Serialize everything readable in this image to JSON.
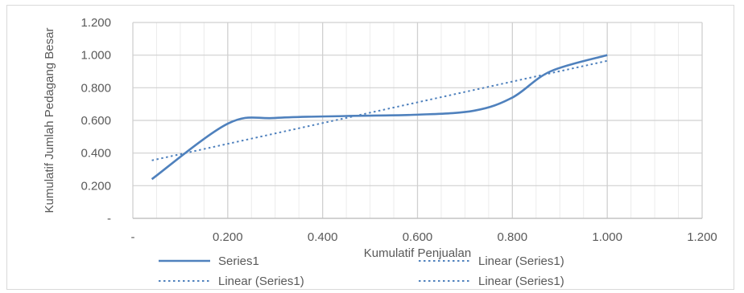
{
  "chart_data": {
    "type": "line",
    "title": "",
    "xlabel": "Kumulatif Penjualan",
    "ylabel": "Kumulatif Jumlah Pedagang Besar",
    "xlim": [
      0,
      1.2
    ],
    "ylim": [
      0,
      1.2
    ],
    "x_ticks": [
      "-",
      "0.200",
      "0.400",
      "0.600",
      "0.800",
      "1.000",
      "1.200"
    ],
    "y_ticks": [
      "-",
      "0.200",
      "0.400",
      "0.600",
      "0.800",
      "1.000",
      "1.200"
    ],
    "grid": true,
    "legend_position": "bottom",
    "series": [
      {
        "name": "Series1",
        "style": "solid",
        "color": "#4f81bd",
        "points": [
          [
            0.04,
            0.24
          ],
          [
            0.2,
            0.58
          ],
          [
            0.3,
            0.615
          ],
          [
            0.45,
            0.627
          ],
          [
            0.6,
            0.635
          ],
          [
            0.72,
            0.66
          ],
          [
            0.8,
            0.74
          ],
          [
            0.88,
            0.9
          ],
          [
            1.0,
            1.0
          ]
        ]
      },
      {
        "name": "Linear (Series1)",
        "style": "dotted",
        "color": "#4f81bd",
        "points": [
          [
            0.04,
            0.355
          ],
          [
            1.0,
            0.965
          ]
        ]
      }
    ],
    "legend_entries": [
      {
        "label": "Series1",
        "style": "solid"
      },
      {
        "label": "Linear (Series1)",
        "style": "dotted"
      },
      {
        "label": "Linear (Series1)",
        "style": "dotted"
      },
      {
        "label": "Linear (Series1)",
        "style": "dotted"
      }
    ]
  }
}
